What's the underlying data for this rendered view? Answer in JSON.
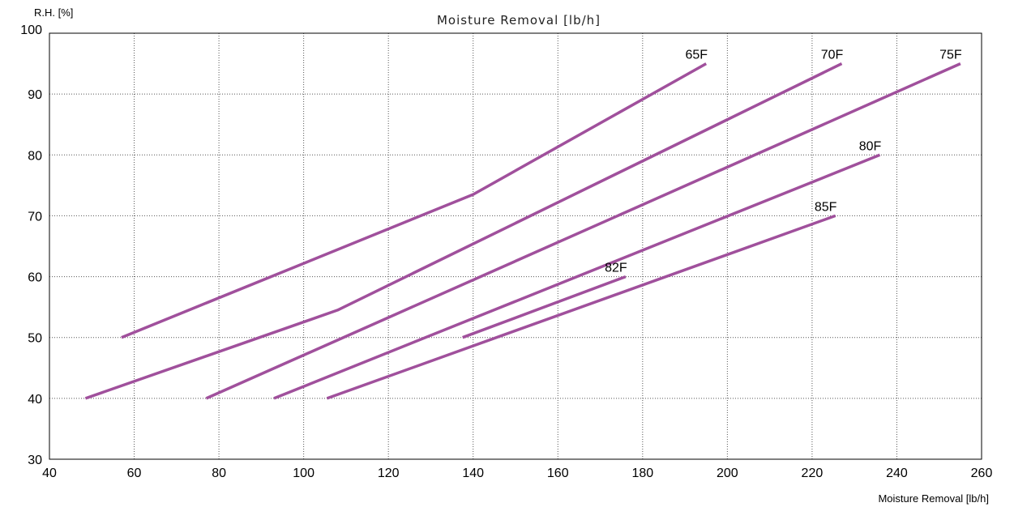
{
  "chart_data": {
    "type": "line",
    "title": "Moisture Removal [lb/h]",
    "xlabel": "Moisture Removal [lb/h]",
    "ylabel": "R.H. [%]",
    "xlim": [
      40,
      260
    ],
    "ylim": [
      30,
      100
    ],
    "x_ticks": [
      40,
      60,
      80,
      100,
      120,
      140,
      160,
      180,
      200,
      220,
      240,
      260
    ],
    "y_ticks": [
      30,
      40,
      50,
      60,
      70,
      80,
      90,
      100
    ],
    "grid": true,
    "line_color": "#a0509c",
    "series": [
      {
        "name": "65F",
        "points": [
          [
            57,
            50
          ],
          [
            140,
            73.5
          ],
          [
            195,
            95
          ]
        ]
      },
      {
        "name": "70F",
        "points": [
          [
            48.5,
            40
          ],
          [
            108,
            54.5
          ],
          [
            227,
            95
          ]
        ]
      },
      {
        "name": "75F",
        "points": [
          [
            77,
            40
          ],
          [
            255,
            95
          ]
        ]
      },
      {
        "name": "80F",
        "points": [
          [
            93,
            40
          ],
          [
            236,
            80
          ]
        ]
      },
      {
        "name": "82F",
        "points": [
          [
            137.5,
            50
          ],
          [
            176,
            60
          ]
        ]
      },
      {
        "name": "85F",
        "points": [
          [
            105.5,
            40
          ],
          [
            225.5,
            70
          ]
        ]
      }
    ]
  }
}
